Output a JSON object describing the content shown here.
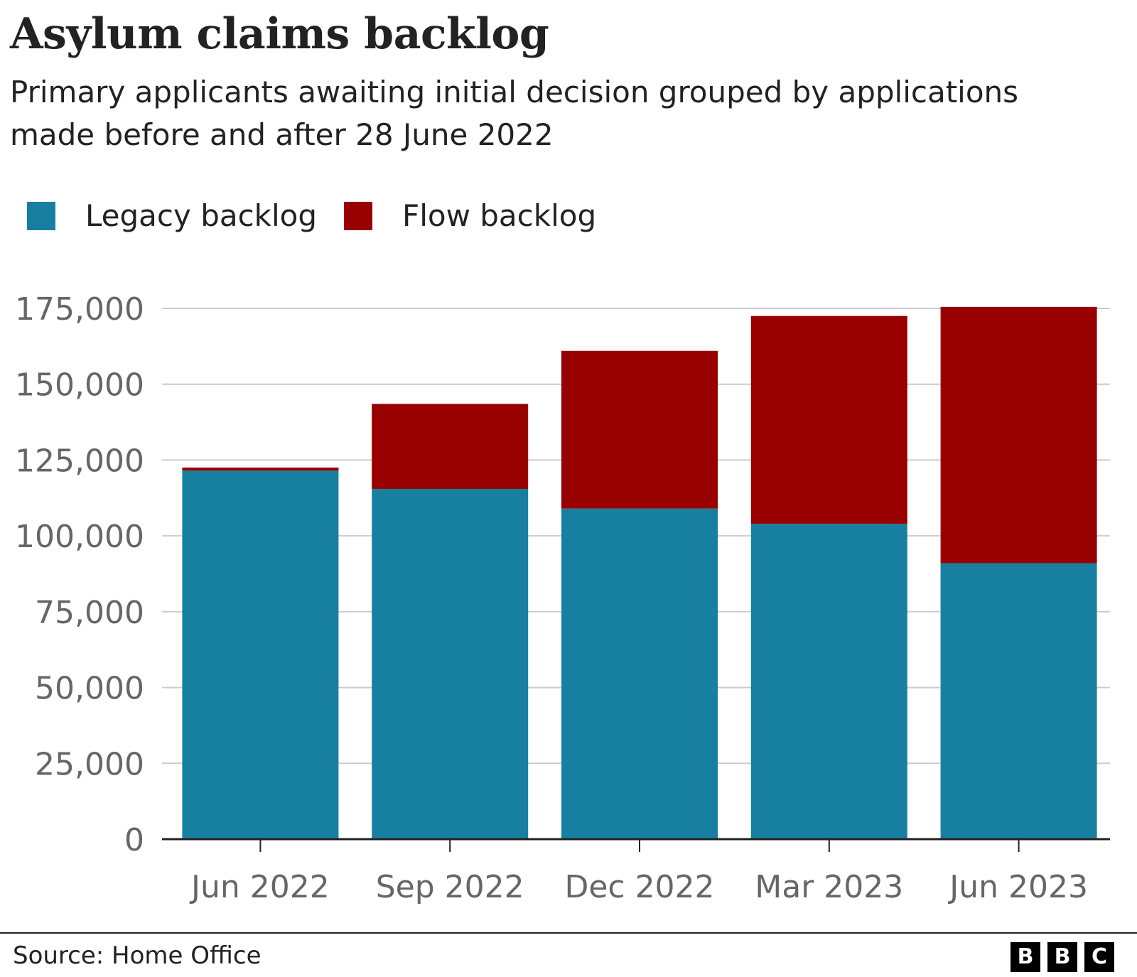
{
  "title": "Asylum claims backlog",
  "subtitle": "Primary applicants awaiting initial decision grouped by applications made before and after 28 June 2022",
  "source": "Source: Home Office",
  "logo": {
    "letters": [
      "B",
      "B",
      "C"
    ]
  },
  "chart_data": {
    "type": "bar",
    "stacked": true,
    "categories": [
      "Jun 2022",
      "Sep 2022",
      "Dec 2022",
      "Mar 2023",
      "Jun 2023"
    ],
    "series": [
      {
        "name": "Legacy backlog",
        "color": "#1780a1",
        "values": [
          121500,
          115500,
          109000,
          104000,
          91000
        ]
      },
      {
        "name": "Flow backlog",
        "color": "#990000",
        "values": [
          1000,
          28000,
          52000,
          68500,
          84500
        ]
      }
    ],
    "ylim": [
      0,
      175000
    ],
    "yticks": [
      0,
      25000,
      50000,
      75000,
      100000,
      125000,
      150000,
      175000
    ],
    "ytick_labels": [
      "0",
      "25,000",
      "50,000",
      "75,000",
      "100,000",
      "125,000",
      "150,000",
      "175,000"
    ],
    "grid": true,
    "legend_position": "top-left",
    "xlabel": "",
    "ylabel": ""
  }
}
